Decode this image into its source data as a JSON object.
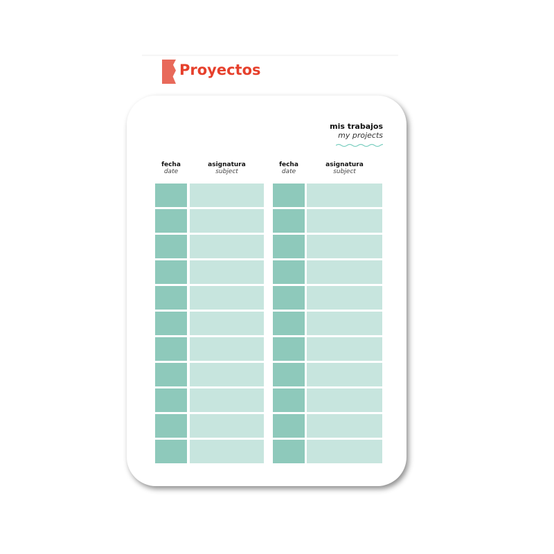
{
  "page_title": "Proyectos",
  "card": {
    "heading": "mis trabajos",
    "subheading": "my projects",
    "columns": [
      {
        "label": "fecha",
        "sublabel": "date"
      },
      {
        "label": "asignatura",
        "sublabel": "subject"
      }
    ],
    "rows_per_table": 11,
    "tables": 2
  },
  "colors": {
    "title": "#e6402c",
    "logo": "#e8695a",
    "date_cell": "#8ec9bb",
    "subject_cell": "#c7e5de",
    "wave": "#7ccfc0"
  }
}
